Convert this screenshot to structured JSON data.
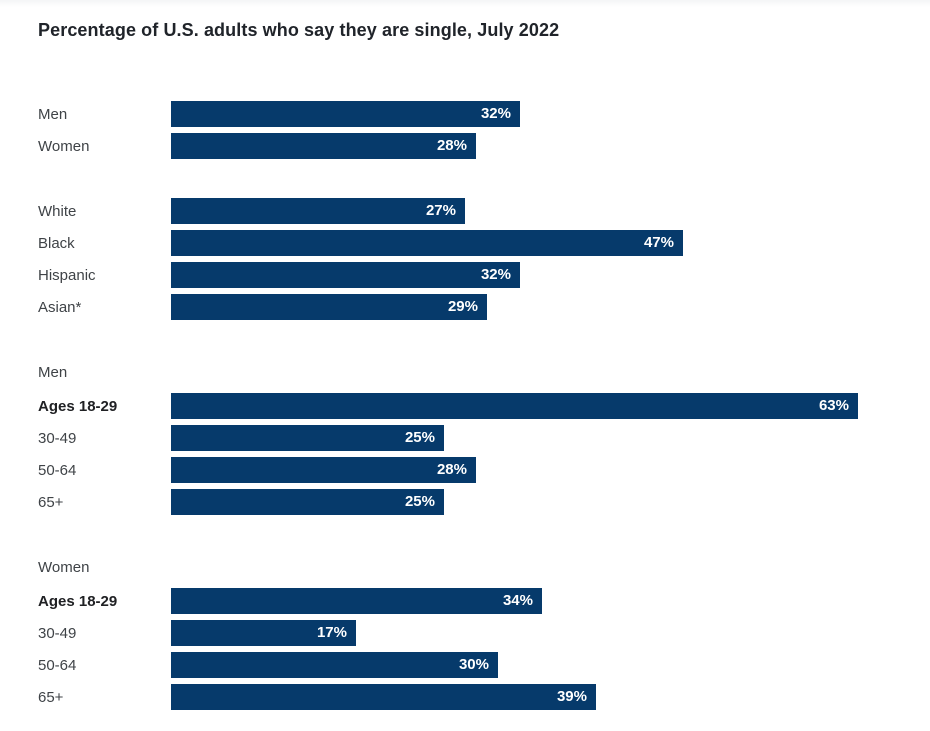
{
  "page": {
    "title": "Percentage of U.S. adults who say they are single, July 2022"
  },
  "colors": {
    "bar": "#063a6b",
    "bar_value_text": "#ffffff",
    "row_label": "#3f4347",
    "row_label_bold": "#202124",
    "title_text": "#20242a",
    "background": "#ffffff"
  },
  "chart_data": {
    "type": "bar",
    "orientation": "horizontal",
    "title": "Percentage of U.S. adults who say they are single, July 2022",
    "unit": "%",
    "xlim": [
      0,
      70
    ],
    "axis_ticks_visible": false,
    "grid": false,
    "legend": "none",
    "value_label_position": "inside-end",
    "groups": [
      {
        "header": null,
        "rows": [
          {
            "label": "Men",
            "value": 32,
            "display": "32%",
            "bold": false
          },
          {
            "label": "Women",
            "value": 28,
            "display": "28%",
            "bold": false
          }
        ]
      },
      {
        "header": null,
        "rows": [
          {
            "label": "White",
            "value": 27,
            "display": "27%",
            "bold": false
          },
          {
            "label": "Black",
            "value": 47,
            "display": "47%",
            "bold": false
          },
          {
            "label": "Hispanic",
            "value": 32,
            "display": "32%",
            "bold": false
          },
          {
            "label": "Asian*",
            "value": 29,
            "display": "29%",
            "bold": false
          }
        ]
      },
      {
        "header": "Men",
        "rows": [
          {
            "label": "Ages 18-29",
            "value": 63,
            "display": "63%",
            "bold": true
          },
          {
            "label": "30-49",
            "value": 25,
            "display": "25%",
            "bold": false
          },
          {
            "label": "50-64",
            "value": 28,
            "display": "28%",
            "bold": false
          },
          {
            "label": "65+",
            "value": 25,
            "display": "25%",
            "bold": false
          }
        ]
      },
      {
        "header": "Women",
        "rows": [
          {
            "label": "Ages 18-29",
            "value": 34,
            "display": "34%",
            "bold": true
          },
          {
            "label": "30-49",
            "value": 17,
            "display": "17%",
            "bold": false
          },
          {
            "label": "50-64",
            "value": 30,
            "display": "30%",
            "bold": false
          },
          {
            "label": "65+",
            "value": 39,
            "display": "39%",
            "bold": false
          }
        ]
      }
    ]
  }
}
